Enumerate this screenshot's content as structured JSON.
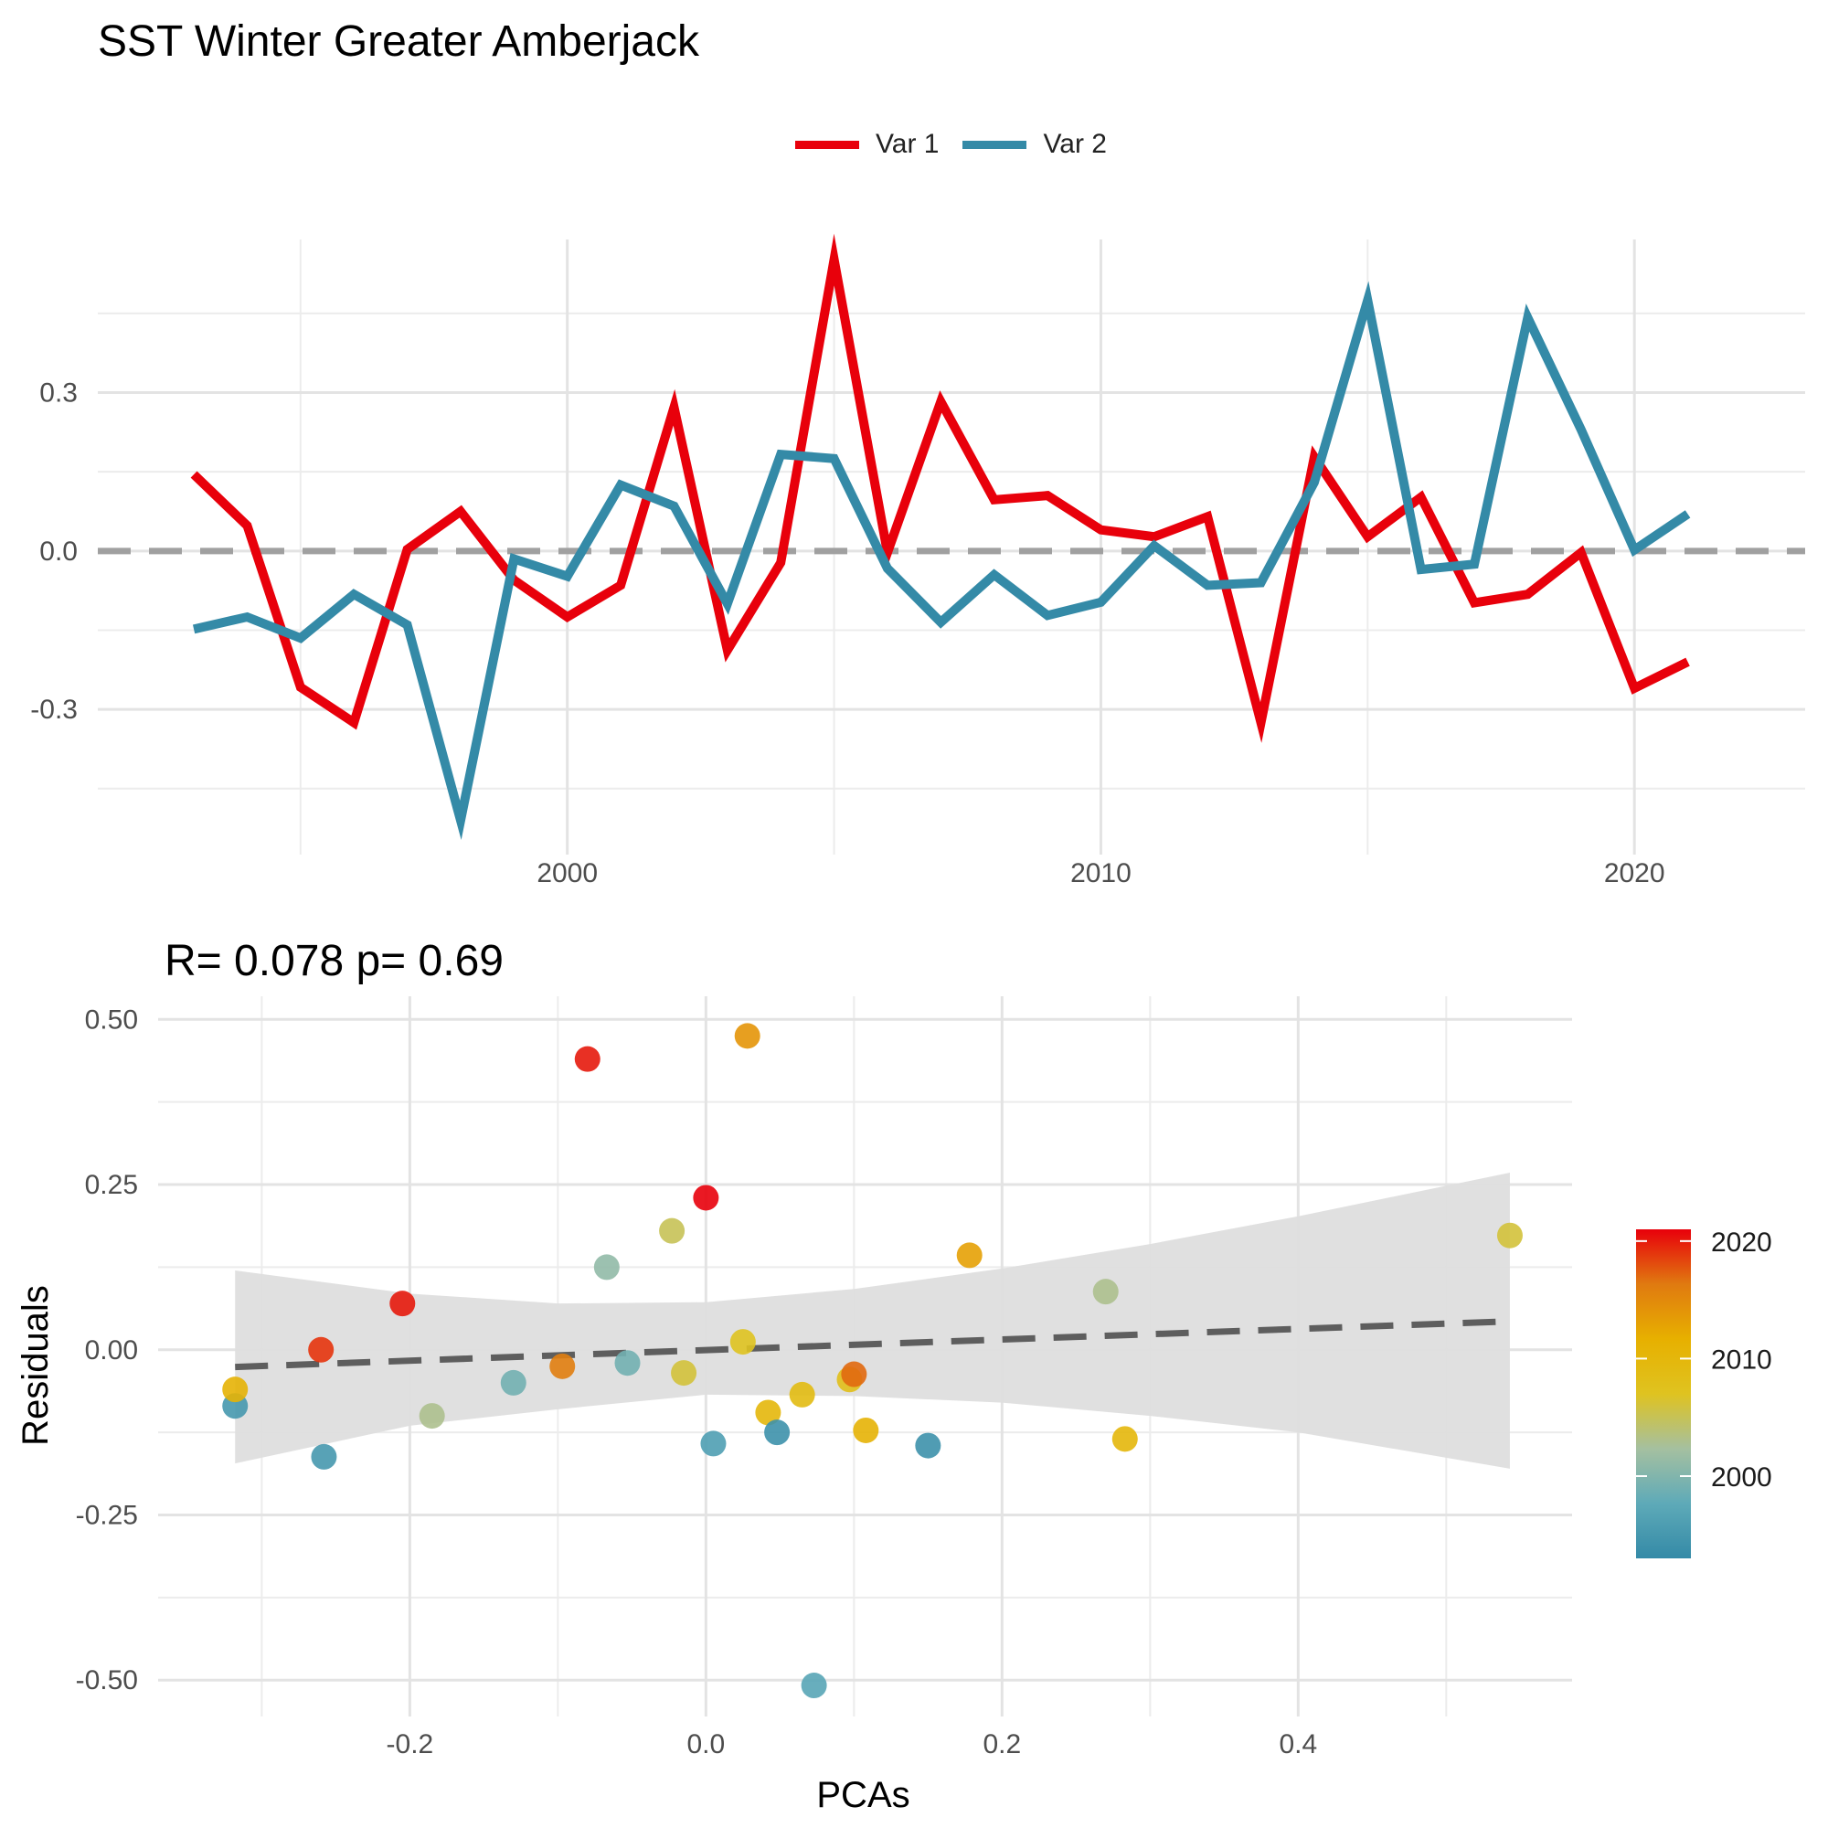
{
  "title": "SST Winter Greater Amberjack",
  "legend": [
    {
      "label": "Var 1",
      "color": "#e8000b"
    },
    {
      "label": "Var 2",
      "color": "#348aa7"
    }
  ],
  "chart_data": [
    {
      "type": "line",
      "title": "",
      "xlabel": "",
      "ylabel": "",
      "x": [
        1993,
        1994,
        1995,
        1996,
        1997,
        1998,
        1999,
        2000,
        2001,
        2002,
        2003,
        2004,
        2005,
        2006,
        2007,
        2008,
        2009,
        2010,
        2011,
        2012,
        2013,
        2014,
        2015,
        2016,
        2017,
        2018,
        2019,
        2020,
        2021
      ],
      "series": [
        {
          "name": "Var 1",
          "color": "#e8000b",
          "values": [
            0.145,
            0.048,
            -0.258,
            -0.325,
            0.003,
            0.075,
            -0.055,
            -0.125,
            -0.065,
            0.272,
            -0.188,
            -0.022,
            0.552,
            -0.003,
            0.283,
            0.097,
            0.105,
            0.04,
            0.027,
            0.065,
            -0.325,
            0.178,
            0.027,
            0.102,
            -0.098,
            -0.082,
            -0.003,
            -0.26,
            -0.21
          ]
        },
        {
          "name": "Var 2",
          "color": "#348aa7",
          "values": [
            -0.148,
            -0.125,
            -0.165,
            -0.082,
            -0.14,
            -0.51,
            -0.015,
            -0.048,
            0.125,
            0.085,
            -0.1,
            0.183,
            0.175,
            -0.033,
            -0.135,
            -0.045,
            -0.122,
            -0.097,
            0.01,
            -0.065,
            -0.06,
            0.13,
            0.475,
            -0.035,
            -0.025,
            0.442,
            0.23,
            0.002,
            0.07
          ]
        }
      ],
      "reference_line": {
        "y": 0,
        "style": "dashed",
        "color": "#a0a0a0"
      },
      "xlim": [
        1991.2,
        2023.2
      ],
      "ylim": [
        -0.575,
        0.59
      ],
      "yticks": [
        -0.3,
        0.0,
        0.3
      ],
      "ytick_labels": [
        "-0.3",
        "0.0",
        "0.3"
      ],
      "xticks": [
        2000,
        2010,
        2020
      ],
      "xtick_labels": [
        "2000",
        "2010",
        "2020"
      ],
      "grid": true
    },
    {
      "type": "scatter",
      "title": "R= 0.078  p= 0.69",
      "xlabel": "PCAs",
      "ylabel": "Residuals",
      "xlim": [
        -0.37,
        0.585
      ],
      "ylim": [
        -0.555,
        0.535
      ],
      "xticks": [
        -0.2,
        0.0,
        0.2,
        0.4
      ],
      "xtick_labels": [
        "-0.2",
        "0.0",
        "0.2",
        "0.4"
      ],
      "yticks": [
        -0.5,
        -0.25,
        0.0,
        0.25,
        0.5
      ],
      "ytick_labels": [
        "-0.50",
        "-0.25",
        "0.00",
        "0.25",
        "0.50"
      ],
      "grid": true,
      "points": [
        {
          "x": -0.318,
          "y": -0.085,
          "year": 1995
        },
        {
          "x": -0.258,
          "y": -0.162,
          "year": 1995
        },
        {
          "x": -0.318,
          "y": -0.06,
          "year": 2011
        },
        {
          "x": -0.26,
          "y": 0.0,
          "year": 2019
        },
        {
          "x": -0.205,
          "y": 0.07,
          "year": 2020
        },
        {
          "x": -0.185,
          "y": -0.1,
          "year": 2003
        },
        {
          "x": -0.13,
          "y": -0.05,
          "year": 1999
        },
        {
          "x": -0.097,
          "y": -0.025,
          "year": 2016
        },
        {
          "x": -0.08,
          "y": 0.44,
          "year": 2020
        },
        {
          "x": -0.067,
          "y": 0.125,
          "year": 2001
        },
        {
          "x": -0.053,
          "y": -0.02,
          "year": 1999
        },
        {
          "x": -0.023,
          "y": 0.18,
          "year": 2005
        },
        {
          "x": -0.015,
          "y": -0.035,
          "year": 2006
        },
        {
          "x": 0.0,
          "y": 0.23,
          "year": 2021
        },
        {
          "x": 0.005,
          "y": -0.142,
          "year": 1996
        },
        {
          "x": 0.025,
          "y": 0.012,
          "year": 2007
        },
        {
          "x": 0.028,
          "y": 0.475,
          "year": 2014
        },
        {
          "x": 0.042,
          "y": -0.095,
          "year": 2010
        },
        {
          "x": 0.048,
          "y": -0.125,
          "year": 1994
        },
        {
          "x": 0.065,
          "y": -0.068,
          "year": 2009
        },
        {
          "x": 0.073,
          "y": -0.508,
          "year": 1997
        },
        {
          "x": 0.097,
          "y": -0.045,
          "year": 2008
        },
        {
          "x": 0.1,
          "y": -0.037,
          "year": 2017
        },
        {
          "x": 0.108,
          "y": -0.122,
          "year": 2011
        },
        {
          "x": 0.15,
          "y": -0.145,
          "year": 1994
        },
        {
          "x": 0.178,
          "y": 0.143,
          "year": 2013
        },
        {
          "x": 0.27,
          "y": 0.088,
          "year": 2003
        },
        {
          "x": 0.283,
          "y": -0.135,
          "year": 2010
        },
        {
          "x": 0.543,
          "y": 0.173,
          "year": 2006
        }
      ],
      "fit_line": {
        "x": [
          -0.318,
          0.543
        ],
        "y": [
          -0.026,
          0.043
        ],
        "style": "dashed",
        "color": "#5e5e5e"
      },
      "confidence_band": {
        "x": [
          -0.318,
          -0.2,
          -0.1,
          0.0,
          0.1,
          0.2,
          0.3,
          0.4,
          0.543
        ],
        "upper": [
          0.12,
          0.085,
          0.07,
          0.072,
          0.092,
          0.123,
          0.16,
          0.202,
          0.268
        ],
        "lower": [
          -0.172,
          -0.115,
          -0.09,
          -0.068,
          -0.07,
          -0.08,
          -0.1,
          -0.125,
          -0.18
        ],
        "color": "#dedede"
      },
      "colorbar": {
        "label": "",
        "range": [
          1993,
          2021
        ],
        "ticks": [
          2000,
          2010,
          2020
        ],
        "tick_labels": [
          "2000",
          "2010",
          "2020"
        ],
        "colors": [
          "#348aa7",
          "#5eaab8",
          "#a5c0a0",
          "#dfc320",
          "#e7b000",
          "#e07a10",
          "#e8000b"
        ]
      }
    }
  ]
}
